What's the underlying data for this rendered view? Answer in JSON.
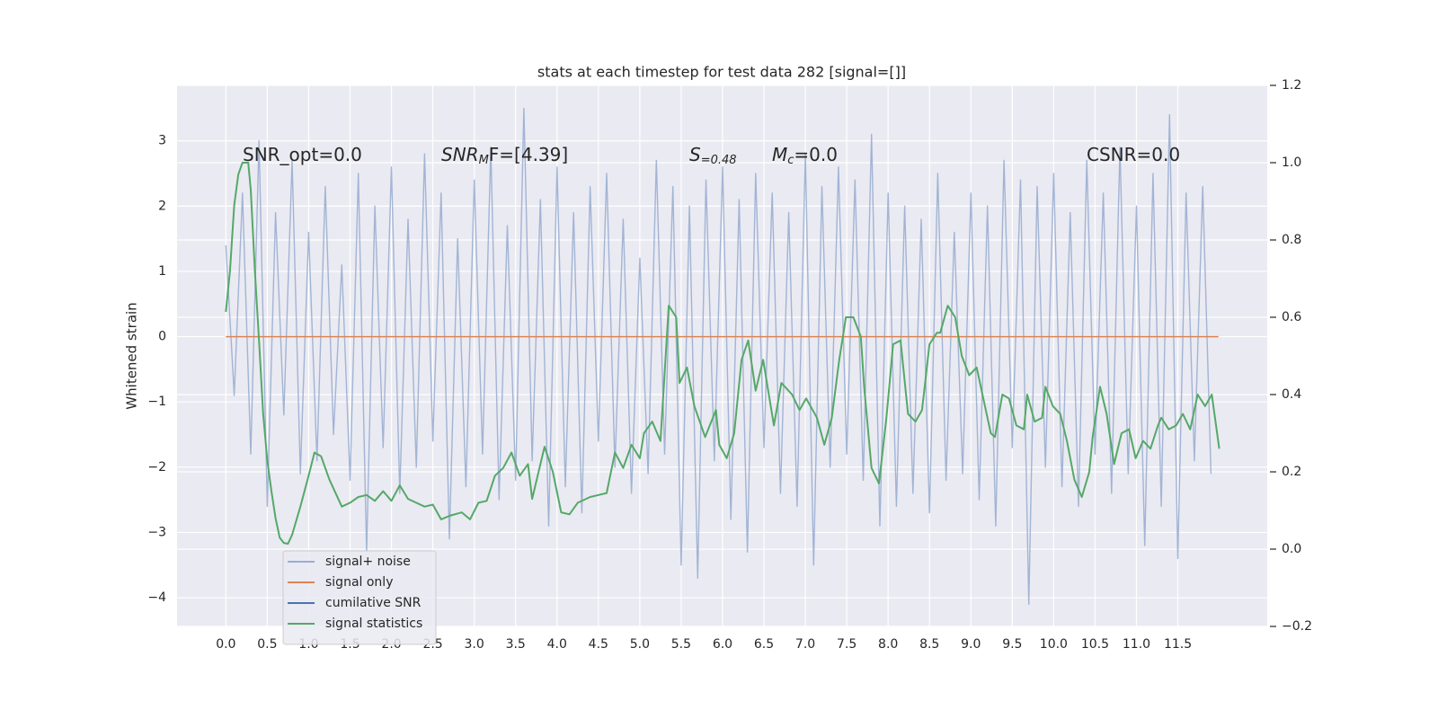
{
  "chart_data": {
    "type": "line",
    "title": "stats at each timestep for test data 282 [signal=[]]",
    "ylabel": "Whitened strain",
    "annotations": [
      [
        "SNR_opt=0.0"
      ],
      [
        "SNR",
        "M",
        "F=[4.39]"
      ],
      [
        "S",
        "=0.48"
      ],
      [
        "M",
        "c",
        "=0.0"
      ],
      [
        "CSNR=0.0"
      ]
    ],
    "xlim": [
      -0.59,
      12.58
    ],
    "ylim": [
      -4.44,
      3.85
    ],
    "y2lim": [
      -0.2,
      1.2
    ],
    "xticks": [
      {
        "value": 0,
        "label": "0.0"
      },
      0.5,
      {
        "value": 1,
        "label": "1.0"
      },
      1.5,
      {
        "value": 2,
        "label": "2.0"
      },
      2.5,
      {
        "value": 3,
        "label": "3.0"
      },
      3.5,
      {
        "value": 4,
        "label": "4.0"
      },
      4.5,
      {
        "value": 5,
        "label": "5.0"
      },
      5.5,
      {
        "value": 6,
        "label": "6.0"
      },
      6.5,
      {
        "value": 7,
        "label": "7.0"
      },
      7.5,
      {
        "value": 8,
        "label": "8.0"
      },
      8.5,
      {
        "value": 9,
        "label": "9.0"
      },
      9.5,
      {
        "value": 10,
        "label": "10.0"
      },
      10.5,
      {
        "value": 11,
        "label": "11.0"
      },
      11.5
    ],
    "yticks": [
      {
        "value": -4,
        "label": "−4"
      },
      {
        "value": -3,
        "label": "−3"
      },
      {
        "value": -2,
        "label": "−2"
      },
      {
        "value": -1,
        "label": "−1"
      },
      0,
      1,
      2,
      3
    ],
    "y2ticks": [
      {
        "value": -0.2,
        "label": "−0.2"
      },
      {
        "value": 0,
        "label": "0.0"
      },
      0.2,
      0.4,
      0.6,
      0.8,
      {
        "value": 1,
        "label": "1.0"
      },
      1.2
    ],
    "grid": true,
    "legend": "lower left",
    "series": [
      {
        "name": "signal+ noise",
        "color": "#9aaed0",
        "x": [
          0,
          0.1,
          0.2,
          0.3,
          0.4,
          0.5,
          0.6,
          0.7,
          0.8,
          0.9,
          1,
          1.1,
          1.2,
          1.3,
          1.4,
          1.5,
          1.6,
          1.7,
          1.8,
          1.9,
          2,
          2.1,
          2.2,
          2.3,
          2.4,
          2.5,
          2.6,
          2.7,
          2.8,
          2.9,
          3,
          3.1,
          3.2,
          3.3,
          3.4,
          3.5,
          3.6,
          3.7,
          3.8,
          3.9,
          4,
          4.1,
          4.2,
          4.3,
          4.4,
          4.5,
          4.6,
          4.7,
          4.8,
          4.9,
          5,
          5.1,
          5.2,
          5.3,
          5.4,
          5.5,
          5.6,
          5.7,
          5.8,
          5.9,
          6,
          6.1,
          6.2,
          6.3,
          6.4,
          6.5,
          6.6,
          6.7,
          6.8,
          6.9,
          7,
          7.1,
          7.2,
          7.3,
          7.4,
          7.5,
          7.6,
          7.7,
          7.8,
          7.9,
          8,
          8.1,
          8.2,
          8.3,
          8.4,
          8.5,
          8.6,
          8.7,
          8.8,
          8.9,
          9,
          9.1,
          9.2,
          9.3,
          9.4,
          9.5,
          9.6,
          9.7,
          9.8,
          9.9,
          10,
          10.1,
          10.2,
          10.3,
          10.4,
          10.5,
          10.6,
          10.7,
          10.8,
          10.9,
          11,
          11.1,
          11.2,
          11.3,
          11.4,
          11.5,
          11.6,
          11.7,
          11.8,
          11.9
        ],
        "values": [
          1.4,
          -0.9,
          2.2,
          -1.8,
          3.0,
          -2.6,
          1.9,
          -1.2,
          2.7,
          -2.1,
          1.6,
          -1.9,
          2.3,
          -1.5,
          1.1,
          -2.2,
          2.5,
          -3.3,
          2.0,
          -1.7,
          2.6,
          -2.4,
          1.8,
          -2.0,
          2.8,
          -1.6,
          2.2,
          -3.1,
          1.5,
          -2.3,
          2.4,
          -1.8,
          2.9,
          -2.5,
          1.7,
          -2.2,
          3.5,
          -1.9,
          2.1,
          -2.9,
          2.6,
          -2.3,
          1.9,
          -2.7,
          2.3,
          -1.6,
          2.5,
          -2.0,
          1.8,
          -2.4,
          1.2,
          -2.1,
          2.7,
          -1.8,
          2.3,
          -3.5,
          2.0,
          -3.7,
          2.4,
          -1.9,
          2.6,
          -2.8,
          2.1,
          -3.3,
          2.5,
          -1.7,
          2.2,
          -2.4,
          1.9,
          -2.6,
          2.8,
          -3.5,
          2.3,
          -2.0,
          2.6,
          -1.8,
          2.4,
          -2.2,
          3.1,
          -2.9,
          2.2,
          -2.6,
          2.0,
          -2.4,
          1.8,
          -2.7,
          2.5,
          -2.2,
          1.6,
          -2.1,
          2.2,
          -2.5,
          2.0,
          -2.9,
          2.7,
          -1.7,
          2.4,
          -4.1,
          2.3,
          -2.0,
          2.5,
          -2.3,
          1.9,
          -2.6,
          2.7,
          -1.8,
          2.2,
          -2.4,
          2.9,
          -2.1,
          2.0,
          -3.2,
          2.5,
          -2.6,
          3.4,
          -3.4,
          2.2,
          -1.9,
          2.3,
          -2.1
        ]
      },
      {
        "name": "signal only",
        "color": "#dd8452",
        "x": [
          0,
          11.99
        ],
        "values": [
          0,
          0
        ]
      },
      {
        "name": "cumilative SNR",
        "color": "#4c72b0",
        "x": [],
        "values": []
      },
      {
        "name": "signal statistics",
        "color": "#55a868",
        "axis": "y2",
        "x": [
          0,
          0.05,
          0.1,
          0.15,
          0.2,
          0.27,
          0.3,
          0.35,
          0.4,
          0.45,
          0.5,
          0.55,
          0.6,
          0.65,
          0.7,
          0.75,
          0.8,
          0.9,
          1,
          1.07,
          1.15,
          1.25,
          1.4,
          1.5,
          1.6,
          1.7,
          1.8,
          1.9,
          2,
          2.1,
          2.2,
          2.3,
          2.4,
          2.5,
          2.6,
          2.7,
          2.85,
          2.95,
          3.05,
          3.15,
          3.25,
          3.35,
          3.45,
          3.55,
          3.65,
          3.7,
          3.8,
          3.85,
          3.95,
          4.05,
          4.15,
          4.25,
          4.4,
          4.5,
          4.6,
          4.7,
          4.8,
          4.9,
          5,
          5.05,
          5.15,
          5.25,
          5.35,
          5.44,
          5.48,
          5.57,
          5.66,
          5.79,
          5.92,
          5.96,
          6.05,
          6.14,
          6.23,
          6.31,
          6.4,
          6.49,
          6.62,
          6.71,
          6.84,
          6.93,
          7.01,
          7.14,
          7.23,
          7.32,
          7.41,
          7.49,
          7.58,
          7.67,
          7.71,
          7.8,
          7.89,
          7.98,
          8.06,
          8.15,
          8.24,
          8.33,
          8.41,
          8.5,
          8.59,
          8.63,
          8.72,
          8.81,
          8.89,
          8.98,
          9.07,
          9.16,
          9.24,
          9.29,
          9.38,
          9.46,
          9.55,
          9.64,
          9.68,
          9.77,
          9.86,
          9.9,
          9.99,
          10.08,
          10.16,
          10.25,
          10.34,
          10.43,
          10.47,
          10.56,
          10.64,
          10.73,
          10.82,
          10.91,
          10.99,
          11.08,
          11.17,
          11.26,
          11.3,
          11.39,
          11.48,
          11.56,
          11.65,
          11.74,
          11.83,
          11.91,
          12
        ],
        "values": [
          0.614,
          0.72,
          0.89,
          0.97,
          1.0,
          1.0,
          0.93,
          0.72,
          0.54,
          0.35,
          0.23,
          0.15,
          0.08,
          0.03,
          0.016,
          0.014,
          0.037,
          0.11,
          0.19,
          0.25,
          0.24,
          0.18,
          0.11,
          0.12,
          0.135,
          0.14,
          0.125,
          0.15,
          0.125,
          0.165,
          0.13,
          0.12,
          0.11,
          0.115,
          0.077,
          0.086,
          0.095,
          0.077,
          0.12,
          0.125,
          0.19,
          0.21,
          0.25,
          0.19,
          0.22,
          0.13,
          0.22,
          0.265,
          0.2,
          0.095,
          0.09,
          0.12,
          0.135,
          0.14,
          0.145,
          0.25,
          0.21,
          0.27,
          0.235,
          0.3,
          0.33,
          0.28,
          0.63,
          0.6,
          0.43,
          0.47,
          0.37,
          0.29,
          0.36,
          0.27,
          0.235,
          0.3,
          0.49,
          0.54,
          0.41,
          0.49,
          0.32,
          0.43,
          0.4,
          0.36,
          0.39,
          0.34,
          0.27,
          0.34,
          0.49,
          0.6,
          0.6,
          0.55,
          0.42,
          0.21,
          0.17,
          0.34,
          0.53,
          0.54,
          0.35,
          0.33,
          0.36,
          0.53,
          0.56,
          0.56,
          0.63,
          0.6,
          0.5,
          0.45,
          0.47,
          0.38,
          0.3,
          0.29,
          0.4,
          0.39,
          0.32,
          0.31,
          0.4,
          0.33,
          0.34,
          0.42,
          0.37,
          0.35,
          0.28,
          0.18,
          0.135,
          0.2,
          0.29,
          0.42,
          0.35,
          0.22,
          0.3,
          0.31,
          0.235,
          0.28,
          0.26,
          0.32,
          0.34,
          0.31,
          0.32,
          0.35,
          0.31,
          0.4,
          0.37,
          0.4,
          0.26
        ]
      }
    ]
  }
}
